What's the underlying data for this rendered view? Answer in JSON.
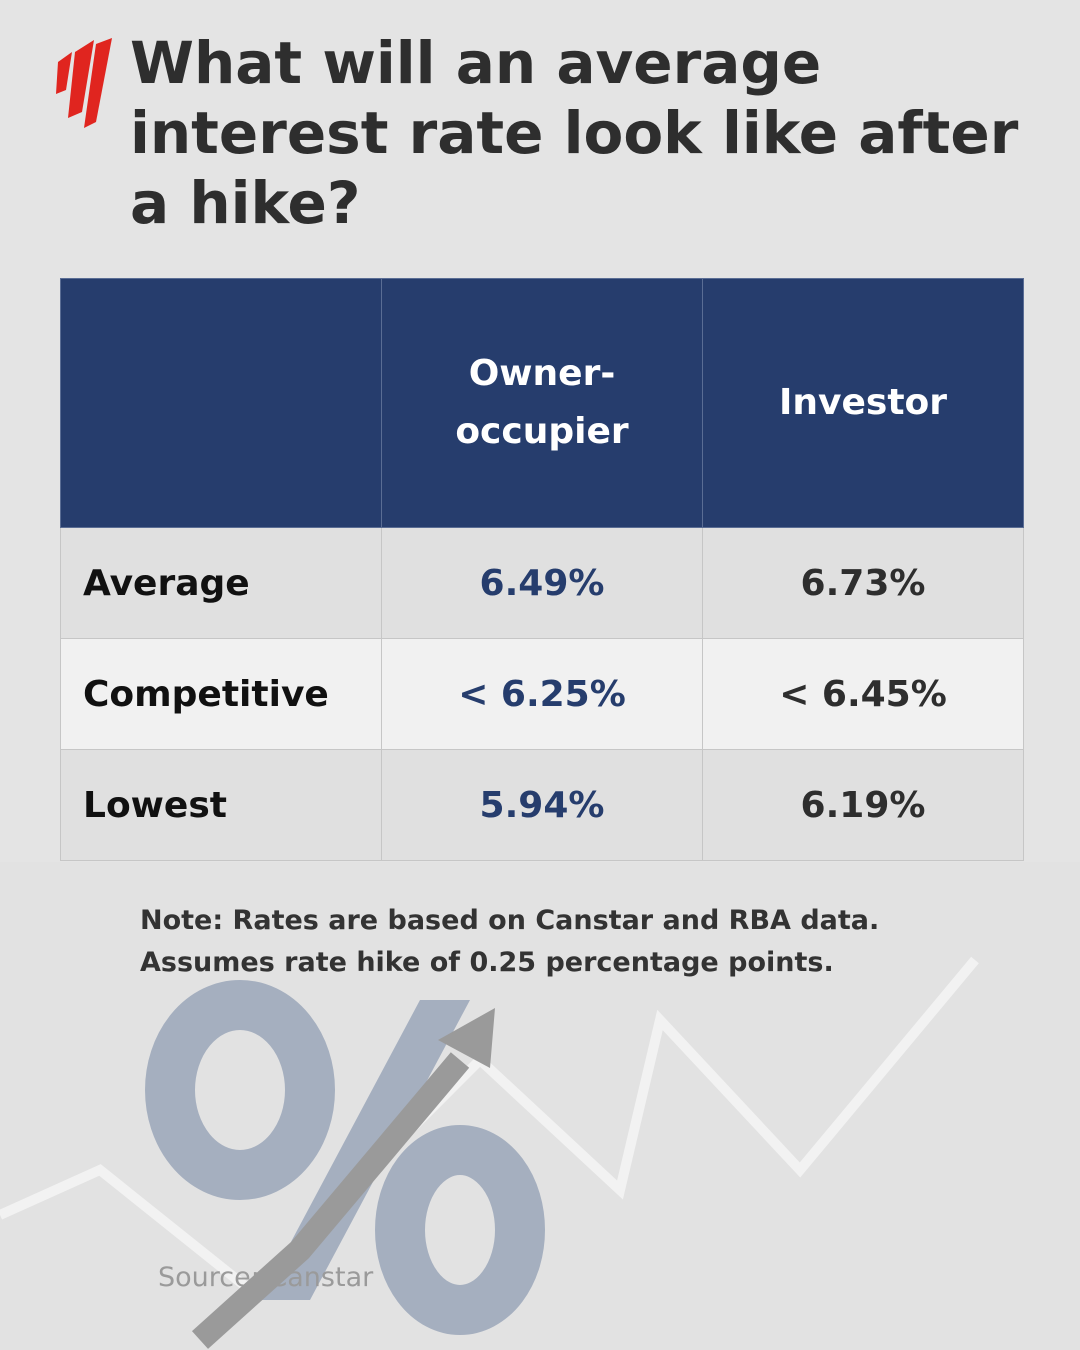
{
  "header": {
    "title": "What will an average interest rate look like after a hike?"
  },
  "table": {
    "columns": [
      "Owner-occupier",
      "Investor"
    ],
    "rows": [
      [
        "Average",
        "6.49%",
        "6.73%"
      ],
      [
        "Competitive",
        "< 6.25%",
        "< 6.45%"
      ],
      [
        "Lowest",
        "5.94%",
        "6.19%"
      ]
    ]
  },
  "note": "Note: Rates are based on Canstar and RBA data. Assumes rate hike of 0.25 percentage points.",
  "source": "Source: Canstar"
}
